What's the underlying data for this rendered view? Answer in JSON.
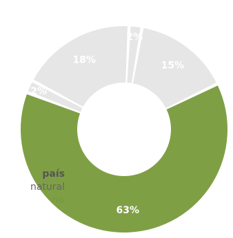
{
  "chart_data": {
    "type": "pie",
    "donut": true,
    "slices": [
      {
        "label": "63%",
        "value": 63,
        "color": "#7f9f45"
      },
      {
        "label": "2%",
        "value": 2,
        "color": "#e6e6e6"
      },
      {
        "label": "18%",
        "value": 18,
        "color": "#e6e6e6"
      },
      {
        "label": "2%",
        "value": 2,
        "color": "#e6e6e6"
      },
      {
        "label": "15%",
        "value": 15,
        "color": "#e6e6e6"
      }
    ],
    "legend": "left, partially visible"
  },
  "side_text": {
    "line1": "país",
    "line2": "natural",
    "line3": "na"
  }
}
